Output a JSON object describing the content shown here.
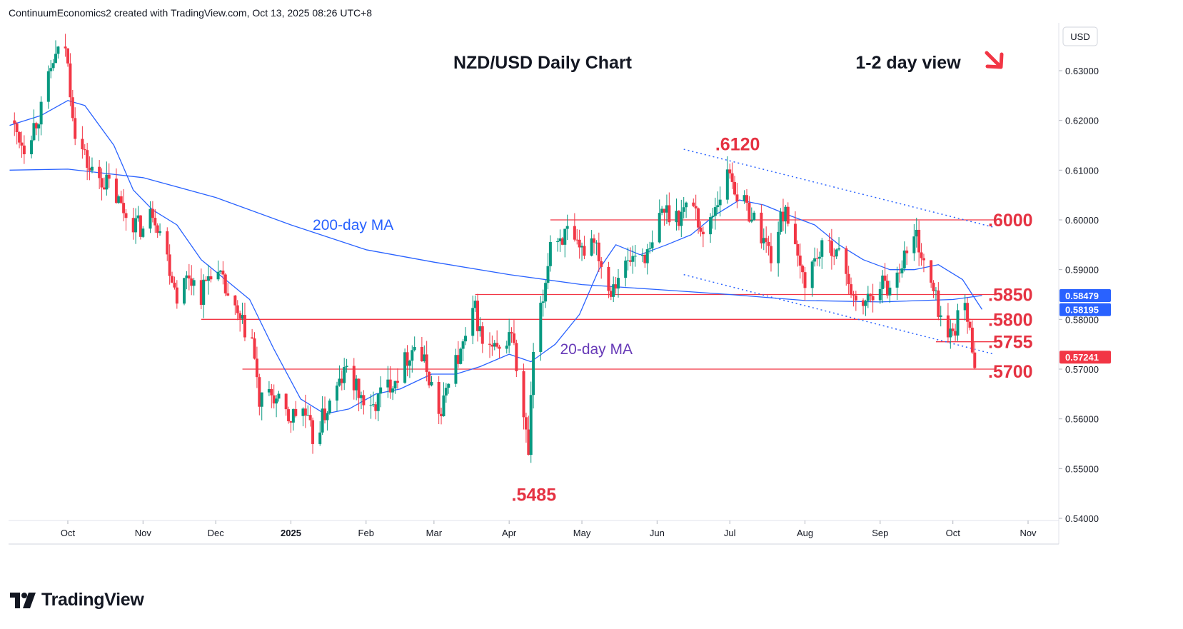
{
  "header": {
    "credit": "ContinuumEconomics2 created with TradingView.com, Oct 13, 2025 08:26 UTC+8"
  },
  "brand": {
    "name": "TradingView"
  },
  "colors": {
    "up": "#089981",
    "down": "#f23645",
    "ma200": "#2962ff",
    "ma20": "#2962ff",
    "level_line": "#f23645",
    "level_text": "#e53242",
    "trendline": "#2962ff",
    "arrow": "#f23645"
  },
  "chart_data": {
    "type": "candlestick",
    "title": "NZD/USD Daily Chart",
    "view_note": "1-2 day view",
    "view_arrow": "down-right-arrow",
    "currency": "USD",
    "y_range": [
      0.54,
      0.64
    ],
    "y_ticks": [
      "0.63000",
      "0.62000",
      "0.61000",
      "0.60000",
      "0.59000",
      "0.58000",
      "0.57000",
      "0.56000",
      "0.55000",
      "0.54000"
    ],
    "x_labels": [
      "Oct",
      "Nov",
      "Dec",
      "2025",
      "Feb",
      "Mar",
      "Apr",
      "May",
      "Jun",
      "Jul",
      "Aug",
      "Sep",
      "Oct",
      "Nov"
    ],
    "x_label_dates": [
      "2024-10-01",
      "2024-11-01",
      "2024-12-01",
      "2025-01-01",
      "2025-02-01",
      "2025-03-01",
      "2025-04-01",
      "2025-05-01",
      "2025-06-01",
      "2025-07-01",
      "2025-08-01",
      "2025-09-01",
      "2025-10-01",
      "2025-11-01"
    ],
    "x_range": [
      "2024-09-07",
      "2025-11-15"
    ],
    "price_anchors": [
      [
        "2024-09-07",
        0.62
      ],
      [
        "2024-09-13",
        0.615
      ],
      [
        "2024-09-20",
        0.622
      ],
      [
        "2024-09-25",
        0.632
      ],
      [
        "2024-09-30",
        0.635
      ],
      [
        "2024-10-04",
        0.618
      ],
      [
        "2024-10-10",
        0.61
      ],
      [
        "2024-10-18",
        0.607
      ],
      [
        "2024-10-25",
        0.601
      ],
      [
        "2024-11-01",
        0.598
      ],
      [
        "2024-11-05",
        0.602
      ],
      [
        "2024-11-08",
        0.598
      ],
      [
        "2024-11-15",
        0.585
      ],
      [
        "2024-11-20",
        0.589
      ],
      [
        "2024-11-25",
        0.585
      ],
      [
        "2024-11-29",
        0.59
      ],
      [
        "2024-12-03",
        0.588
      ],
      [
        "2024-12-10",
        0.58
      ],
      [
        "2024-12-16",
        0.576
      ],
      [
        "2024-12-19",
        0.563
      ],
      [
        "2024-12-24",
        0.565
      ],
      [
        "2024-12-31",
        0.56
      ],
      [
        "2025-01-06",
        0.562
      ],
      [
        "2025-01-10",
        0.556
      ],
      [
        "2025-01-15",
        0.561
      ],
      [
        "2025-01-20",
        0.566
      ],
      [
        "2025-01-24",
        0.57
      ],
      [
        "2025-01-28",
        0.566
      ],
      [
        "2025-02-03",
        0.561
      ],
      [
        "2025-02-07",
        0.565
      ],
      [
        "2025-02-14",
        0.569
      ],
      [
        "2025-02-21",
        0.575
      ],
      [
        "2025-02-26",
        0.57
      ],
      [
        "2025-03-04",
        0.56
      ],
      [
        "2025-03-07",
        0.569
      ],
      [
        "2025-03-12",
        0.573
      ],
      [
        "2025-03-18",
        0.582
      ],
      [
        "2025-03-21",
        0.575
      ],
      [
        "2025-03-28",
        0.573
      ],
      [
        "2025-04-02",
        0.578
      ],
      [
        "2025-04-04",
        0.57
      ],
      [
        "2025-04-09",
        0.553
      ],
      [
        "2025-04-11",
        0.573
      ],
      [
        "2025-04-15",
        0.584
      ],
      [
        "2025-04-18",
        0.596
      ],
      [
        "2025-04-25",
        0.597
      ],
      [
        "2025-04-30",
        0.593
      ],
      [
        "2025-05-06",
        0.597
      ],
      [
        "2025-05-12",
        0.586
      ],
      [
        "2025-05-16",
        0.589
      ],
      [
        "2025-05-23",
        0.593
      ],
      [
        "2025-05-29",
        0.593
      ],
      [
        "2025-06-03",
        0.602
      ],
      [
        "2025-06-10",
        0.601
      ],
      [
        "2025-06-16",
        0.604
      ],
      [
        "2025-06-20",
        0.596
      ],
      [
        "2025-06-25",
        0.603
      ],
      [
        "2025-07-01",
        0.61
      ],
      [
        "2025-07-04",
        0.605
      ],
      [
        "2025-07-10",
        0.601
      ],
      [
        "2025-07-15",
        0.596
      ],
      [
        "2025-07-18",
        0.593
      ],
      [
        "2025-07-24",
        0.603
      ],
      [
        "2025-07-29",
        0.591
      ],
      [
        "2025-08-01",
        0.588
      ],
      [
        "2025-08-06",
        0.593
      ],
      [
        "2025-08-12",
        0.595
      ],
      [
        "2025-08-18",
        0.59
      ],
      [
        "2025-08-22",
        0.582
      ],
      [
        "2025-08-27",
        0.584
      ],
      [
        "2025-09-01",
        0.588
      ],
      [
        "2025-09-05",
        0.586
      ],
      [
        "2025-09-10",
        0.592
      ],
      [
        "2025-09-16",
        0.597
      ],
      [
        "2025-09-19",
        0.591
      ],
      [
        "2025-09-24",
        0.584
      ],
      [
        "2025-09-29",
        0.576
      ],
      [
        "2025-10-03",
        0.58
      ],
      [
        "2025-10-06",
        0.583
      ],
      [
        "2025-10-08",
        0.577
      ],
      [
        "2025-10-10",
        0.5724
      ]
    ],
    "ma200": [
      [
        "2024-09-07",
        0.61
      ],
      [
        "2024-10-01",
        0.6102
      ],
      [
        "2024-11-01",
        0.6085
      ],
      [
        "2024-12-01",
        0.6045
      ],
      [
        "2025-01-01",
        0.599
      ],
      [
        "2025-02-01",
        0.594
      ],
      [
        "2025-03-01",
        0.5915
      ],
      [
        "2025-04-01",
        0.589
      ],
      [
        "2025-05-01",
        0.587
      ],
      [
        "2025-06-01",
        0.586
      ],
      [
        "2025-07-01",
        0.585
      ],
      [
        "2025-08-01",
        0.5838
      ],
      [
        "2025-09-01",
        0.5835
      ],
      [
        "2025-10-01",
        0.584
      ],
      [
        "2025-10-13",
        0.5848
      ]
    ],
    "ma20": [
      [
        "2024-09-07",
        0.619
      ],
      [
        "2024-09-20",
        0.621
      ],
      [
        "2024-10-01",
        0.624
      ],
      [
        "2024-10-08",
        0.623
      ],
      [
        "2024-10-20",
        0.615
      ],
      [
        "2024-10-28",
        0.606
      ],
      [
        "2024-11-05",
        0.602
      ],
      [
        "2024-11-15",
        0.599
      ],
      [
        "2024-11-25",
        0.592
      ],
      [
        "2024-12-05",
        0.588
      ],
      [
        "2024-12-15",
        0.584
      ],
      [
        "2024-12-25",
        0.574
      ],
      [
        "2025-01-05",
        0.564
      ],
      [
        "2025-01-15",
        0.561
      ],
      [
        "2025-01-25",
        0.562
      ],
      [
        "2025-02-05",
        0.565
      ],
      [
        "2025-02-15",
        0.566
      ],
      [
        "2025-02-28",
        0.569
      ],
      [
        "2025-03-10",
        0.569
      ],
      [
        "2025-03-20",
        0.5705
      ],
      [
        "2025-04-01",
        0.573
      ],
      [
        "2025-04-10",
        0.5715
      ],
      [
        "2025-04-20",
        0.575
      ],
      [
        "2025-04-30",
        0.581
      ],
      [
        "2025-05-08",
        0.59
      ],
      [
        "2025-05-15",
        0.595
      ],
      [
        "2025-05-25",
        0.593
      ],
      [
        "2025-06-05",
        0.595
      ],
      [
        "2025-06-15",
        0.597
      ],
      [
        "2025-06-25",
        0.601
      ],
      [
        "2025-07-05",
        0.604
      ],
      [
        "2025-07-15",
        0.603
      ],
      [
        "2025-07-25",
        0.601
      ],
      [
        "2025-08-05",
        0.599
      ],
      [
        "2025-08-15",
        0.595
      ],
      [
        "2025-08-25",
        0.592
      ],
      [
        "2025-09-05",
        0.59
      ],
      [
        "2025-09-15",
        0.59
      ],
      [
        "2025-09-25",
        0.591
      ],
      [
        "2025-10-05",
        0.588
      ],
      [
        "2025-10-13",
        0.582
      ]
    ],
    "moving_average_labels": [
      {
        "text": "200-day MA",
        "date": "2025-01-10",
        "price": 0.598
      },
      {
        "text": "20-day MA",
        "date": "2025-04-22",
        "price": 0.573
      }
    ],
    "horizontal_levels": [
      {
        "price": 0.6,
        "from": "2025-04-18",
        "to": "2025-10-18",
        "label": ".6000"
      },
      {
        "price": 0.585,
        "from": "2025-03-18",
        "to": "2025-10-18",
        "label": ".5850"
      },
      {
        "price": 0.58,
        "from": "2024-11-25",
        "to": "2025-10-18",
        "label": ".5800"
      },
      {
        "price": 0.5755,
        "from": "2025-09-24",
        "to": "2025-10-18",
        "label": ".5755"
      },
      {
        "price": 0.57,
        "from": "2024-12-12",
        "to": "2025-10-18",
        "label": ".5700"
      }
    ],
    "annotations": [
      {
        "text": ".6120",
        "date": "2025-06-25",
        "price": 0.614
      },
      {
        "text": ".5485",
        "date": "2025-04-02",
        "price": 0.5435
      }
    ],
    "trendlines": [
      {
        "from": [
          "2025-06-12",
          0.6142
        ],
        "to": [
          "2025-10-18",
          0.5985
        ]
      },
      {
        "from": [
          "2025-06-12",
          0.589
        ],
        "to": [
          "2025-10-18",
          0.573
        ]
      }
    ],
    "price_badges": [
      {
        "value": "0.58479",
        "price": 0.58479,
        "color": "#2962ff"
      },
      {
        "value": "0.58195",
        "price": 0.58195,
        "color": "#2962ff"
      },
      {
        "value": "0.57241",
        "price": 0.57241,
        "color": "#f23645"
      }
    ]
  }
}
